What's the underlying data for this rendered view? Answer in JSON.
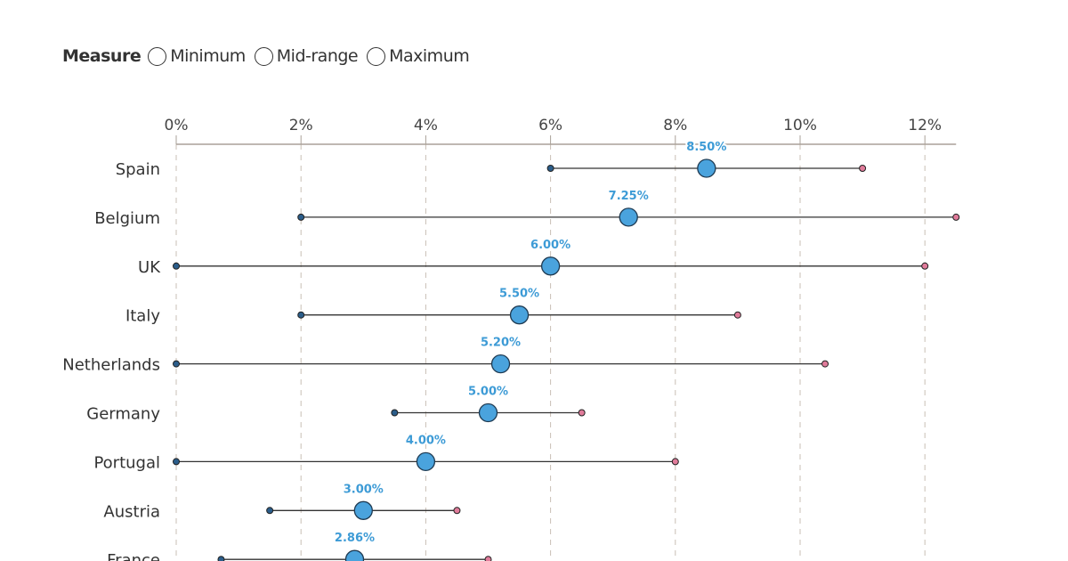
{
  "controls": {
    "label": "Measure",
    "options": [
      "Minimum",
      "Mid-range",
      "Maximum"
    ],
    "selected": null
  },
  "chart_data": {
    "type": "dot-range",
    "xlim": [
      0,
      12.5
    ],
    "x_ticks": [
      0,
      2,
      4,
      6,
      8,
      10,
      12
    ],
    "x_tick_labels": [
      "0%",
      "2%",
      "4%",
      "6%",
      "8%",
      "10%",
      "12%"
    ],
    "grid": "vertical dashed",
    "axis_position": "top",
    "colors": {
      "min": "#2b5d8a",
      "mid": "#4aa3dd",
      "max": "#e07b9a",
      "label": "#3d9bd6"
    },
    "categories": [
      "Spain",
      "Belgium",
      "UK",
      "Italy",
      "Netherlands",
      "Germany",
      "Portugal",
      "Austria",
      "France"
    ],
    "min": [
      6,
      2,
      0,
      2,
      0,
      3.5,
      0,
      1.5,
      0.72
    ],
    "mid": [
      8.5,
      7.25,
      6,
      5.5,
      5.2,
      5,
      4,
      3,
      2.86
    ],
    "max": [
      11,
      12.5,
      12,
      9,
      10.4,
      6.5,
      8,
      4.5,
      5
    ],
    "mid_labels": [
      "8.50%",
      "7.25%",
      "6.00%",
      "5.50%",
      "5.20%",
      "5.00%",
      "4.00%",
      "3.00%",
      "2.86%"
    ]
  }
}
